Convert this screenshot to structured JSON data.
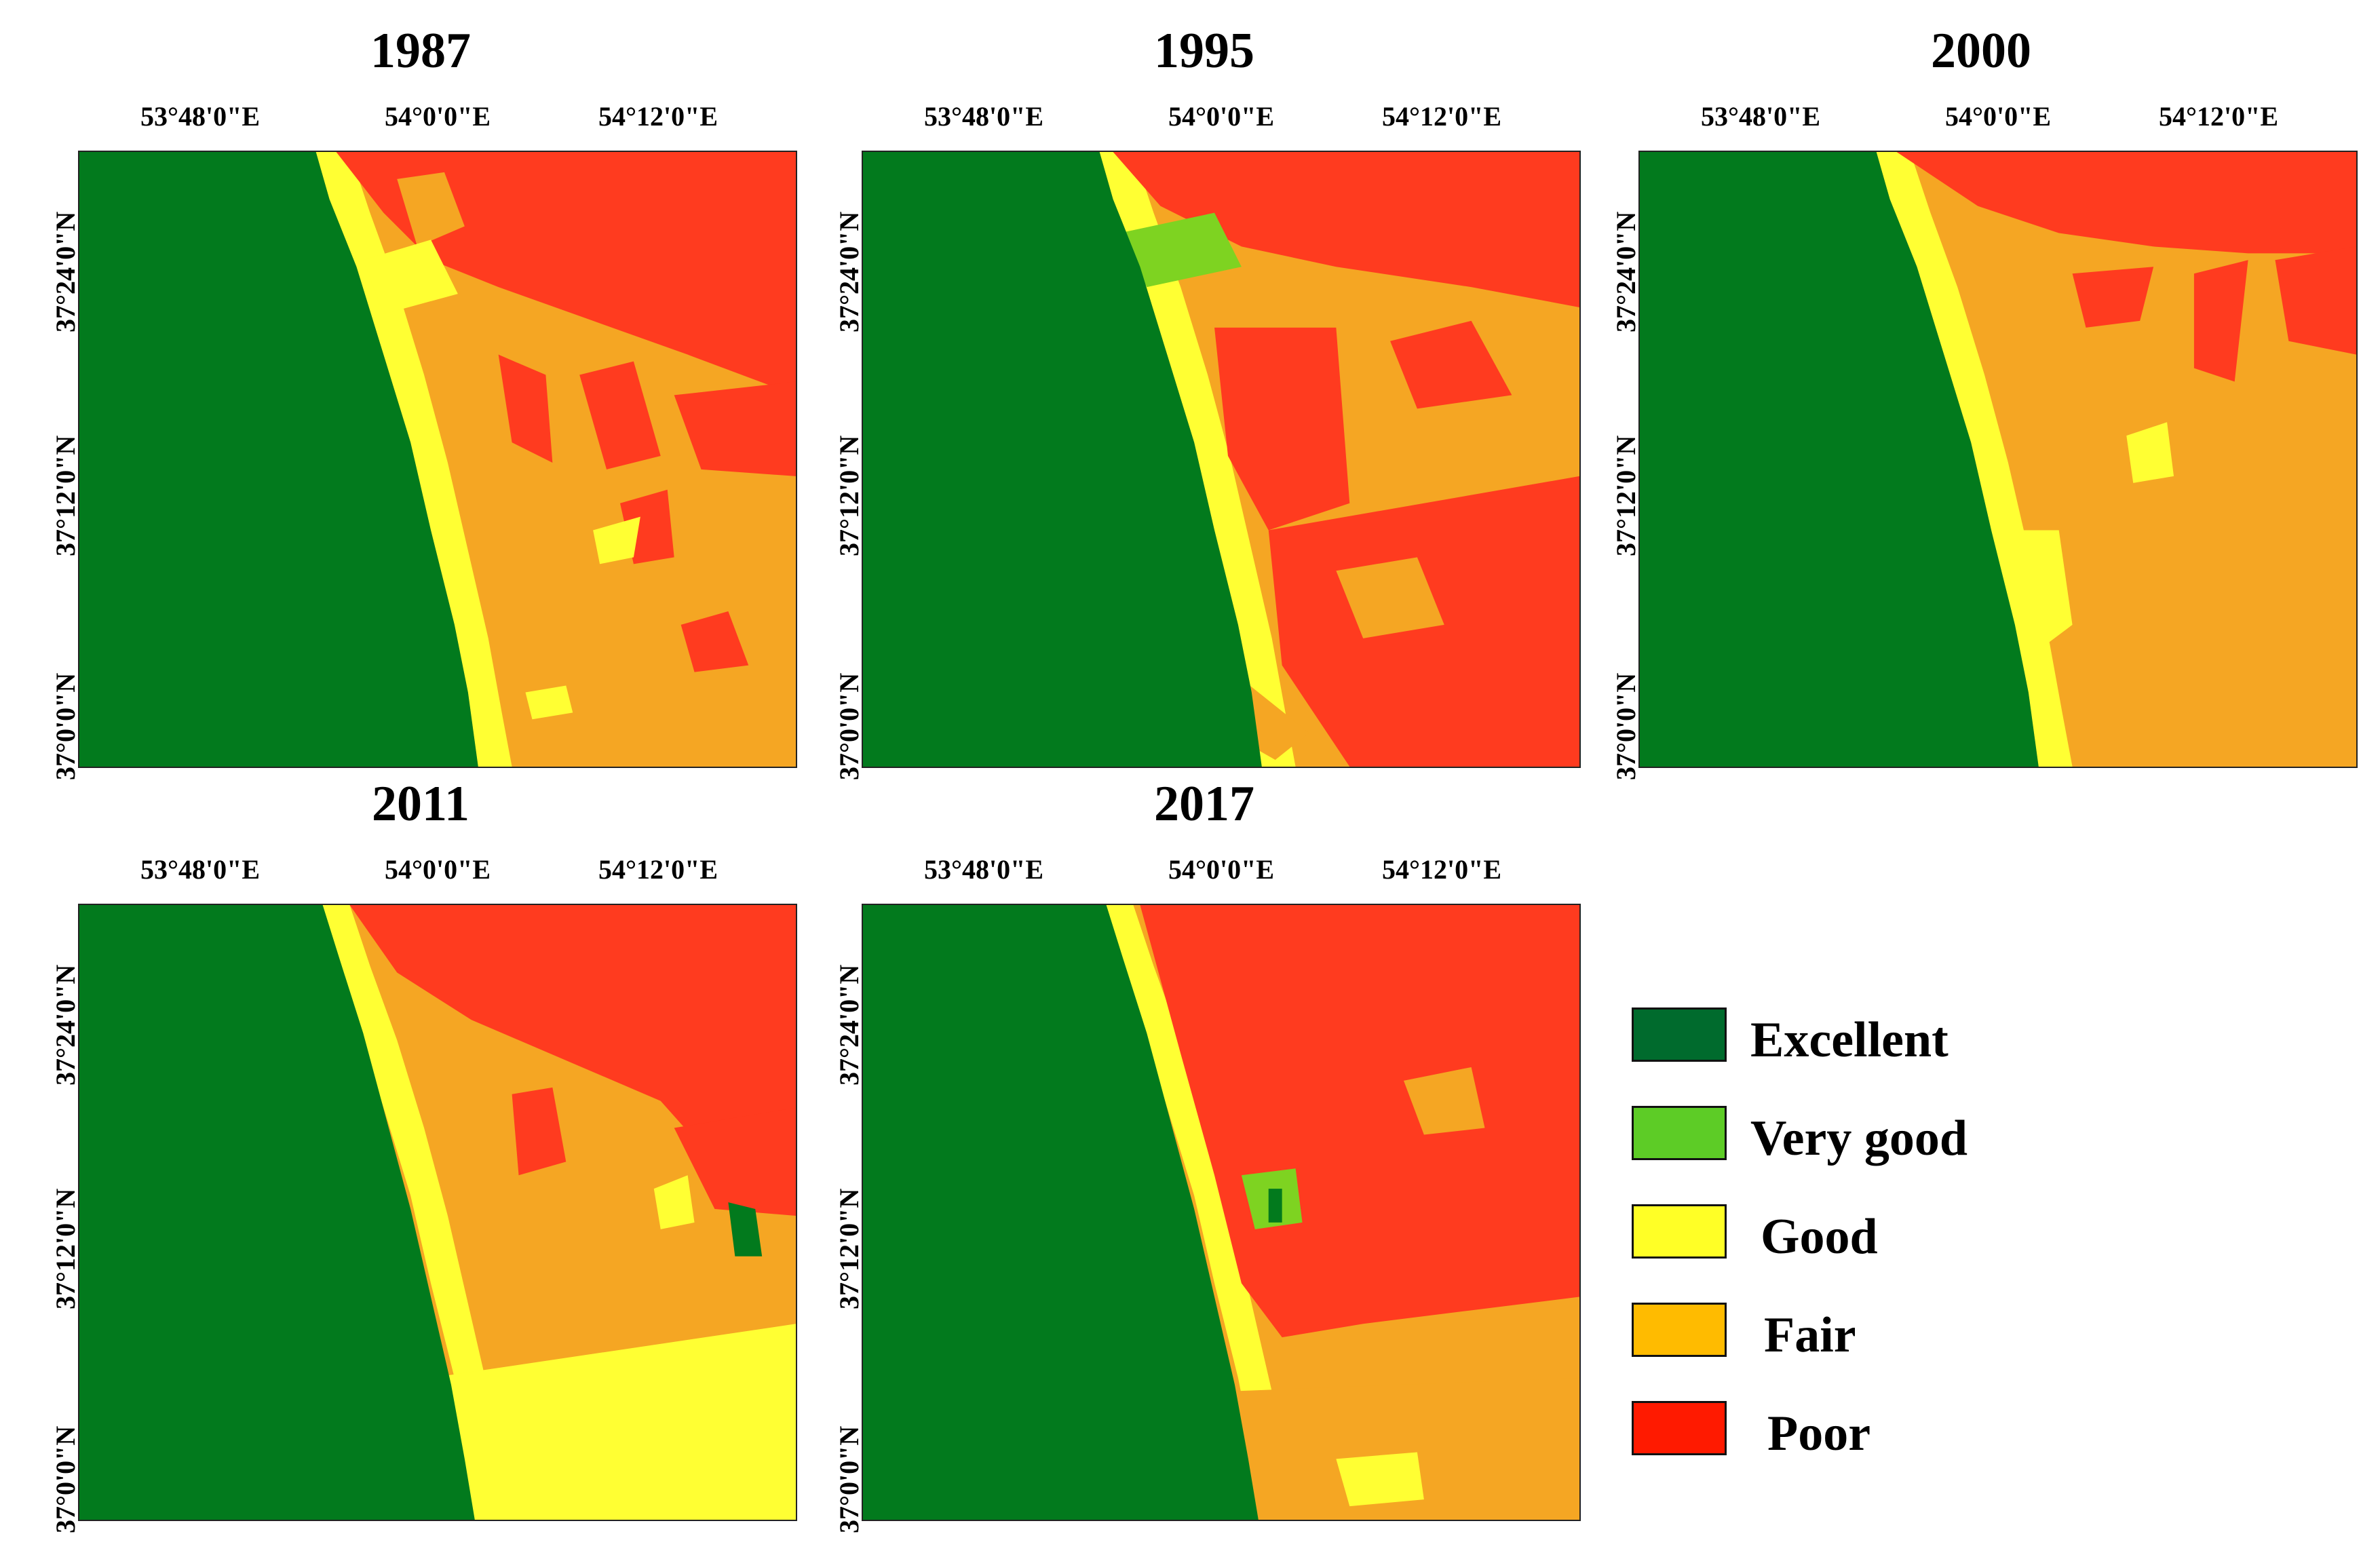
{
  "panels": [
    {
      "year": "1987",
      "variant": "p1987"
    },
    {
      "year": "1995",
      "variant": "p1995"
    },
    {
      "year": "2000",
      "variant": "p2000"
    },
    {
      "year": "2011",
      "variant": "p2011"
    },
    {
      "year": "2017",
      "variant": "p2017"
    }
  ],
  "lon_ticks": [
    "53°48'0\"E",
    "54°0'0\"E",
    "54°12'0\"E"
  ],
  "lat_ticks": [
    "37°24'0\"N",
    "37°12'0\"N",
    "37°0'0\"N"
  ],
  "legend": [
    {
      "label": "Excellent",
      "color": "#006b2d"
    },
    {
      "label": "Very good",
      "color": "#5dcc26"
    },
    {
      "label": "Good",
      "color": "#ffff26"
    },
    {
      "label": "Fair",
      "color": "#ffbb00"
    },
    {
      "label": "Poor",
      "color": "#ff1a00"
    }
  ],
  "map_colors": {
    "sea": "#027a1d",
    "very_good": "#7ed321",
    "good": "#ffff33",
    "fair": "#f5a623",
    "poor": "#ff3b1f"
  }
}
